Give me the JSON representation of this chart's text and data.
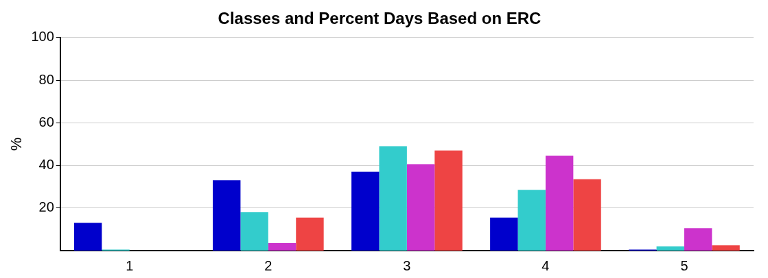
{
  "chart_data": {
    "type": "bar",
    "title": "Classes and Percent Days Based on ERC",
    "ylabel": "%",
    "categories": [
      "1",
      "2",
      "3",
      "4",
      "5"
    ],
    "series": [
      {
        "color": "#0000cc",
        "values": [
          13,
          33,
          37,
          15.5,
          0.5
        ]
      },
      {
        "color": "#33cccc",
        "values": [
          0.5,
          18,
          49,
          28.5,
          2
        ]
      },
      {
        "color": "#cc33cc",
        "values": [
          0,
          3.5,
          40.5,
          44.5,
          10.5
        ]
      },
      {
        "color": "#ee4444",
        "values": [
          0,
          15.5,
          47,
          33.5,
          2.5
        ]
      }
    ],
    "ylim": [
      0,
      100
    ],
    "yticks": [
      20,
      40,
      60,
      80,
      100
    ],
    "grid": "y",
    "legend": false
  }
}
